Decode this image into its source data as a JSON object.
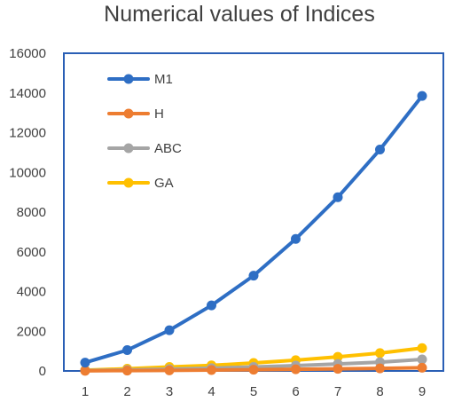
{
  "chart_data": {
    "type": "line",
    "title": "Numerical values of Indices",
    "xlabel": "",
    "ylabel": "",
    "x": [
      1,
      2,
      3,
      4,
      5,
      6,
      7,
      8,
      9
    ],
    "ylim": [
      0,
      16000
    ],
    "yticks": [
      0,
      2000,
      4000,
      6000,
      8000,
      10000,
      12000,
      14000,
      16000
    ],
    "grid": false,
    "legend_position": "top-left",
    "plot_border_color": "#2a5fb5",
    "series": [
      {
        "name": "M1",
        "color": "#2e6ec4",
        "values": [
          420,
          1050,
          2050,
          3300,
          4800,
          6650,
          8750,
          11150,
          13850
        ]
      },
      {
        "name": "H",
        "color": "#ed7d31",
        "values": [
          8,
          18,
          30,
          45,
          62,
          82,
          105,
          130,
          160
        ]
      },
      {
        "name": "ABC",
        "color": "#a5a5a5",
        "values": [
          20,
          50,
          90,
          140,
          200,
          270,
          350,
          440,
          580
        ]
      },
      {
        "name": "GA",
        "color": "#ffc000",
        "values": [
          40,
          110,
          200,
          280,
          400,
          540,
          710,
          900,
          1150
        ]
      }
    ]
  }
}
